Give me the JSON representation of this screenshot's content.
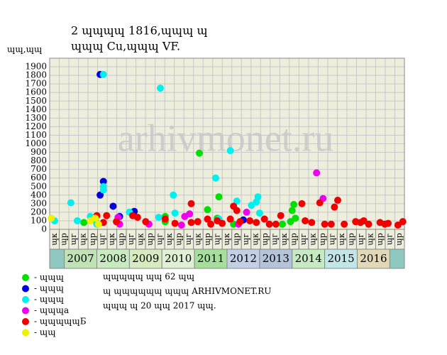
{
  "chart_data": {
    "type": "scatter",
    "title": "2 ɰɰɰɰ 1816,ɰɰɰ ɰ",
    "subtitle": "ɰɰɰ Cu,ɰɰɰ VF.",
    "y_label": "ɰɰ,ɰɰ",
    "watermark": "arhivmonet.ru",
    "ylim": [
      0,
      2000
    ],
    "yticks": [
      0,
      100,
      200,
      300,
      400,
      500,
      600,
      700,
      800,
      900,
      1000,
      1100,
      1200,
      1300,
      1400,
      1500,
      1600,
      1700,
      1800,
      1900
    ],
    "xlim": [
      2006.55,
      2017.45
    ],
    "xticks": [
      2007,
      2008,
      2009,
      2010,
      2011,
      2012,
      2013,
      2014,
      2015,
      2016
    ],
    "year_colors": [
      "#bfe3b4",
      "#c9ebc2",
      "#d6ecc0",
      "#dff0d4",
      "#a6df9c",
      "#c3cfe6",
      "#b4c2da",
      "#c6eac2",
      "#c2e6e8",
      "#e2d8b8"
    ],
    "grid": true,
    "quarter_labels": [
      "ɰк",
      "ɰр",
      "ɰг",
      "ɰк",
      "ɰр",
      "ɰг",
      "ɰк",
      "ɰр",
      "ɰг",
      "ɰк",
      "ɰр",
      "ɰг",
      "ɰк",
      "ɰр",
      "ɰг",
      "ɰк",
      "ɰр",
      "ɰг",
      "ɰк",
      "ɰр",
      "ɰг",
      "ɰк",
      "ɰр",
      "ɰг",
      "ɰк",
      "ɰр",
      "ɰг",
      "ɰк",
      "ɰр",
      "ɰг",
      "ɰк",
      "ɰр",
      "ɰг",
      "ɰк",
      "ɰр",
      "ɰг",
      "ɰр"
    ],
    "series": [
      {
        "name": "- ɰɰɰ",
        "color": "#00e000",
        "x": [
          2007.6,
          2008.0,
          2010.1,
          2010.1,
          2011.15,
          2011.4,
          2011.75,
          2011.7,
          2012.2,
          2013.7,
          2014.0,
          2014.05,
          2014.1,
          2013.95
        ],
        "values": [
          80,
          70,
          150,
          90,
          890,
          230,
          380,
          130,
          60,
          60,
          220,
          290,
          130,
          90
        ]
      },
      {
        "name": "- ɰɰɰ",
        "color": "#0000e0",
        "x": [
          2008.1,
          2008.2,
          2008.1,
          2008.5,
          2008.7,
          2009.15,
          2012.5
        ],
        "values": [
          1810,
          560,
          400,
          270,
          150,
          210,
          110
        ]
      },
      {
        "name": "- ɰɰɰ",
        "color": "#00f0f0",
        "x": [
          2008.2,
          2008.2,
          2008.2,
          2007.2,
          2007.4,
          2007.8,
          2009.95,
          2010.35,
          2011.65,
          2012.1,
          2010.4,
          2009.0,
          2009.9,
          2012.3,
          2012.75,
          2012.9,
          2012.95,
          2013.0,
          2006.7,
          2008.0,
          2011.75
        ],
        "values": [
          1810,
          500,
          460,
          310,
          100,
          150,
          1650,
          400,
          600,
          920,
          190,
          200,
          140,
          330,
          280,
          320,
          380,
          190,
          100,
          60,
          120
        ]
      },
      {
        "name": "- ɰɰɰа",
        "color": "#f000f0",
        "x": [
          2014.75,
          2014.95,
          2012.6,
          2010.85,
          2010.7,
          2008.65,
          2008.7,
          2009.6,
          2010.6,
          2012.35
        ],
        "values": [
          660,
          360,
          200,
          180,
          150,
          140,
          60,
          60,
          50,
          60
        ]
      },
      {
        "name": "- ɰɰɰɰɰБ",
        "color": "#f00000",
        "x": [
          2008.0,
          2008.3,
          2008.2,
          2008.6,
          2009.1,
          2009.25,
          2009.5,
          2010.1,
          2010.4,
          2010.9,
          2010.9,
          2011.1,
          2011.4,
          2011.5,
          2011.7,
          2011.85,
          2012.1,
          2012.2,
          2012.3,
          2012.4,
          2012.7,
          2012.9,
          2013.15,
          2013.3,
          2013.5,
          2013.65,
          2014.3,
          2014.4,
          2014.6,
          2014.85,
          2015.0,
          2015.2,
          2015.3,
          2015.4,
          2015.6,
          2015.95,
          2016.1,
          2016.2,
          2016.35,
          2016.7,
          2016.85,
          2016.95,
          2017.25,
          2017.4
        ],
        "values": [
          160,
          160,
          80,
          90,
          160,
          140,
          90,
          120,
          70,
          300,
          80,
          90,
          120,
          60,
          100,
          70,
          120,
          270,
          220,
          90,
          100,
          80,
          120,
          60,
          60,
          160,
          300,
          100,
          80,
          310,
          60,
          60,
          260,
          340,
          60,
          90,
          80,
          100,
          60,
          80,
          60,
          70,
          50,
          90
        ]
      },
      {
        "name": "- ɰɰ",
        "color": "#f0f000",
        "x": [
          2006.6,
          2007.8,
          2007.95,
          2008.05
        ],
        "values": [
          130,
          100,
          130,
          60
        ]
      }
    ],
    "notes": [
      "ɰɰɰɰɰ ɰɰ 62 ɰɰ",
      "ɰ ɰɰɰɰɰɰ ɰɰɰ ARHIVMONET.RU",
      "ɰɰɰ ɰ 20 ɰɰ 2017 ɰɰ."
    ]
  }
}
